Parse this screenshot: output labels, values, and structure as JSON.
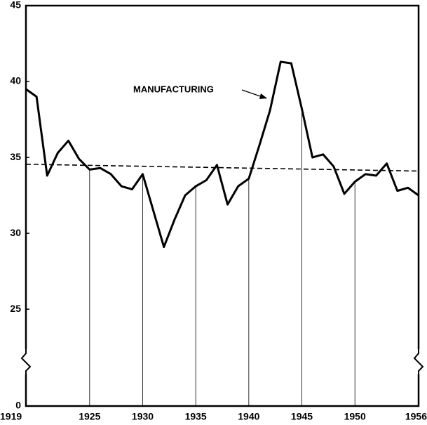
{
  "chart_data": {
    "type": "line",
    "annotation": "MANUFACTURING",
    "x": [
      1919,
      1920,
      1921,
      1922,
      1923,
      1924,
      1925,
      1926,
      1927,
      1928,
      1929,
      1930,
      1931,
      1932,
      1933,
      1934,
      1935,
      1936,
      1937,
      1938,
      1939,
      1940,
      1941,
      1942,
      1943,
      1944,
      1945,
      1946,
      1947,
      1948,
      1949,
      1950,
      1951,
      1952,
      1953,
      1954,
      1955,
      1956
    ],
    "series": [
      {
        "color": "#000000",
        "values": [
          39.5,
          39.0,
          33.8,
          35.3,
          36.1,
          34.9,
          34.2,
          34.3,
          33.9,
          33.1,
          32.9,
          33.9,
          31.5,
          29.1,
          30.9,
          32.5,
          33.1,
          33.5,
          34.5,
          31.9,
          33.1,
          33.6,
          35.8,
          38.1,
          41.3,
          41.2,
          38.2,
          35.0,
          35.2,
          34.4,
          32.6,
          33.4,
          33.9,
          33.8,
          34.6,
          32.8,
          33.0,
          32.5
        ]
      }
    ],
    "trend_line": {
      "x": [
        1919,
        1956
      ],
      "values": [
        34.55,
        34.1
      ]
    },
    "xlim": [
      1919,
      1956
    ],
    "xticks": [
      1919,
      1925,
      1930,
      1935,
      1940,
      1945,
      1950,
      1956
    ],
    "ylim": [
      0,
      45
    ],
    "yticks": [
      0,
      25,
      30,
      35,
      40,
      45
    ],
    "broken_axis": true
  }
}
